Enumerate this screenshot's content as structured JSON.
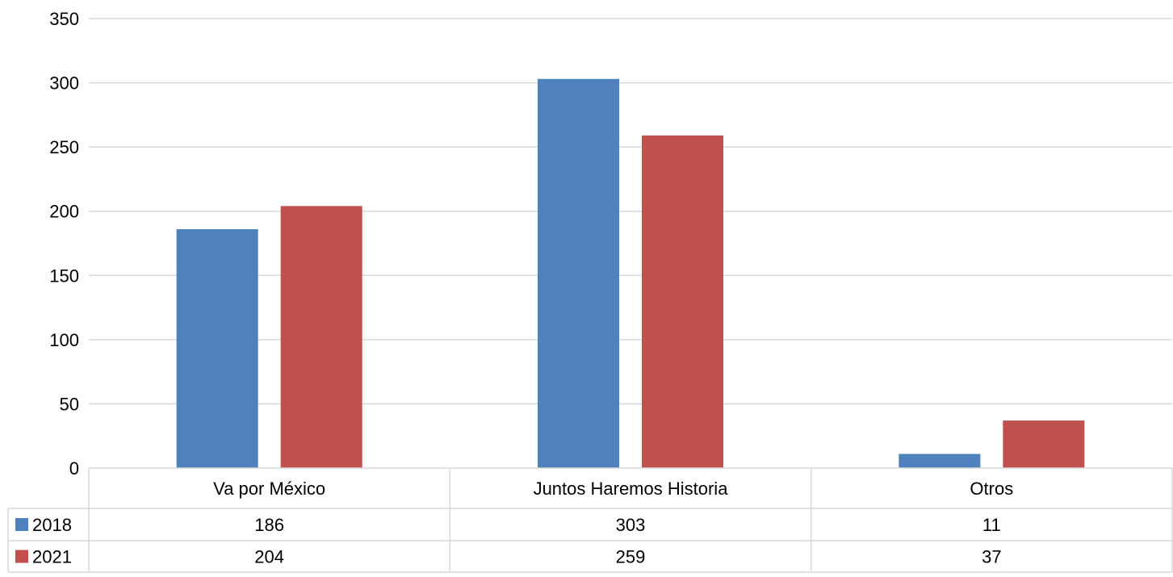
{
  "chart_data": {
    "type": "bar",
    "title": "",
    "xlabel": "",
    "ylabel": "",
    "categories": [
      "Va por México",
      "Juntos Haremos Historia",
      "Otros"
    ],
    "series": [
      {
        "name": "2018",
        "color": "#4F81BD",
        "values": [
          186,
          303,
          11
        ]
      },
      {
        "name": "2021",
        "color": "#C0504D",
        "values": [
          204,
          259,
          37
        ]
      }
    ],
    "ylim": [
      0,
      350
    ],
    "yticks": [
      0,
      50,
      100,
      150,
      200,
      250,
      300,
      350
    ],
    "grid": true,
    "legend": "data-table-left"
  }
}
